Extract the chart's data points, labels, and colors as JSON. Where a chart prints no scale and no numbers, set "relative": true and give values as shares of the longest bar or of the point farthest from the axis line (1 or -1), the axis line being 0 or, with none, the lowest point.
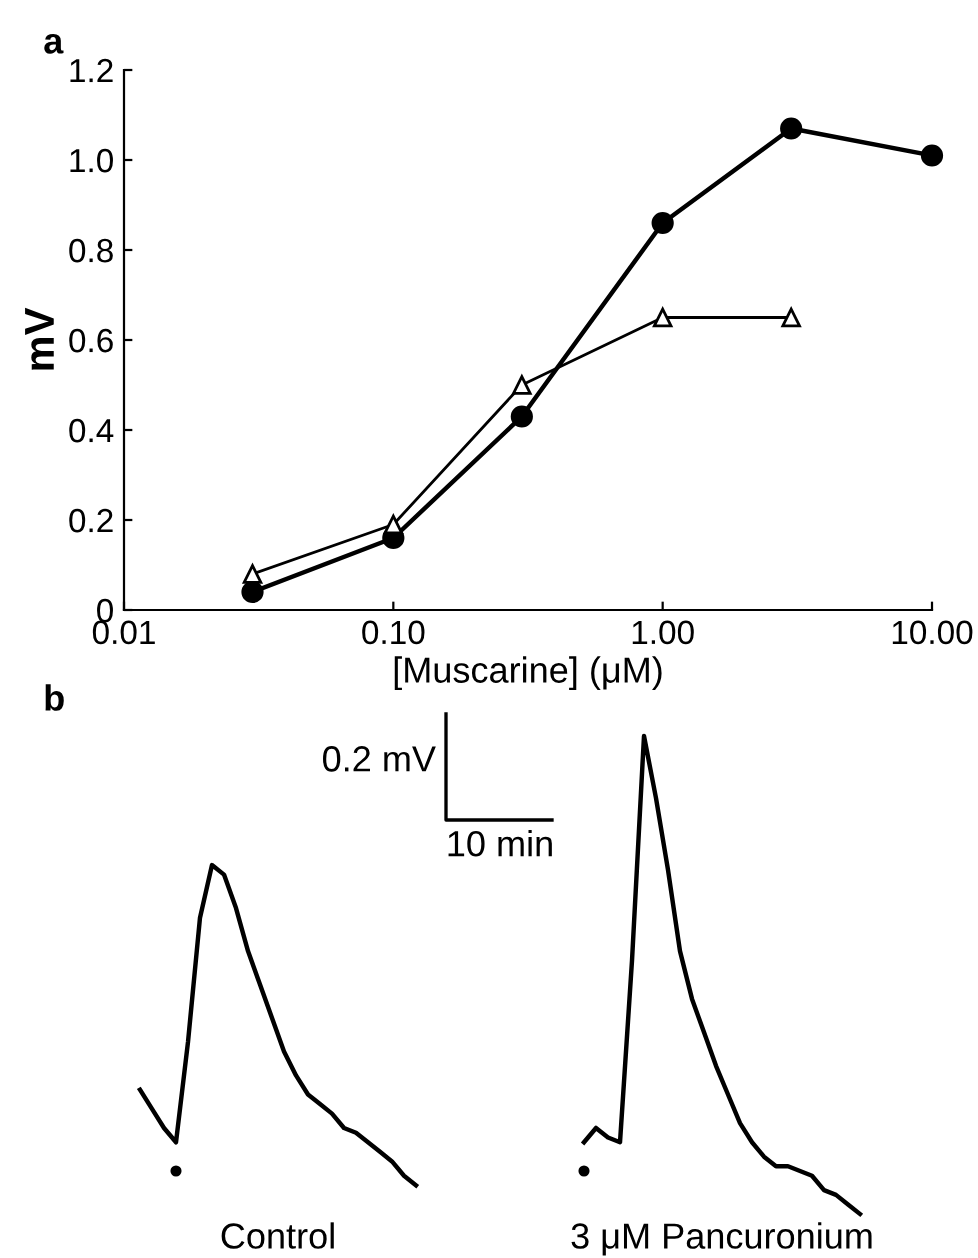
{
  "chart_data": [
    {
      "type": "line",
      "title": "a",
      "xlabel": "[Muscarine] (μM)",
      "ylabel": "mV",
      "log": "x",
      "x": [
        0.03,
        0.1,
        0.3,
        1,
        3,
        10
      ],
      "series": [
        {
          "color": "#000000",
          "marker": "circle",
          "values": [
            0.04,
            0.16,
            0.43,
            0.86,
            1.07,
            1.01
          ]
        },
        {
          "color": "#000000",
          "marker": "triangle",
          "x": [
            0.03,
            0.1,
            0.3,
            1,
            3
          ],
          "values": [
            0.08,
            0.19,
            0.5,
            0.65,
            0.65
          ]
        }
      ],
      "xlim": [
        0.01,
        10
      ],
      "xticks": [
        {
          "value": 0.01,
          "label": "0.01"
        },
        {
          "value": 0.1,
          "label": "0.10"
        },
        {
          "value": 1,
          "label": "1.00"
        },
        {
          "value": 10,
          "label": "10.00"
        }
      ],
      "ylim": [
        0,
        1.2
      ],
      "yticks": [
        0,
        {
          "value": 0.2,
          "label": "0.2"
        },
        {
          "value": 0.4,
          "label": "0.4"
        },
        {
          "value": 0.6,
          "label": "0.6"
        },
        {
          "value": 0.8,
          "label": "0.8"
        },
        {
          "value": 1.0,
          "label": "1.0"
        },
        {
          "value": 1.2,
          "label": "1.2"
        }
      ],
      "grid": false,
      "legend": false
    },
    {
      "type": "line",
      "title": "b",
      "relative": true,
      "legend": false,
      "grid": false,
      "annotations": [
        "0.2 mV",
        "10 min"
      ],
      "categories": [
        null,
        null,
        null,
        null,
        null,
        null,
        null,
        null,
        null,
        null,
        null,
        null,
        null,
        null,
        null,
        null,
        null,
        null,
        null,
        null,
        null,
        null,
        null,
        null,
        null,
        null,
        null,
        null,
        null,
        null,
        null,
        null,
        null,
        null,
        null,
        null,
        null,
        null,
        null,
        null,
        null,
        null,
        null,
        null,
        null,
        null,
        null,
        null,
        null,
        null,
        null,
        null,
        null,
        null,
        null,
        null,
        null,
        null,
        null,
        null,
        null
      ],
      "series": [
        {
          "name": "Control",
          "color": "#000000",
          "values": [
            0.26,
            0.22,
            0.18,
            0.15,
            0.36,
            0.62,
            0.73,
            0.71,
            0.64,
            0.55,
            0.48,
            0.41,
            0.34,
            0.29,
            0.25,
            0.23,
            0.21,
            0.18,
            0.17,
            0.15,
            0.13,
            0.11,
            0.08,
            0.06,
            null,
            null,
            null,
            null,
            null,
            null,
            null,
            null,
            null,
            null,
            null,
            null,
            null,
            null,
            null,
            null,
            null,
            null,
            null,
            null,
            null,
            null,
            null,
            null,
            null,
            null,
            null,
            null,
            null,
            null,
            null,
            null,
            null,
            null,
            null,
            null,
            null
          ]
        },
        {
          "name": "3 μM Pancuronium",
          "color": "#000000",
          "values": [
            null,
            null,
            null,
            null,
            null,
            null,
            null,
            null,
            null,
            null,
            null,
            null,
            null,
            null,
            null,
            null,
            null,
            null,
            null,
            null,
            null,
            null,
            null,
            null,
            null,
            null,
            null,
            null,
            null,
            null,
            null,
            null,
            null,
            null,
            null,
            null,
            null,
            0.15,
            0.18,
            0.16,
            0.15,
            0.53,
            1,
            0.87,
            0.72,
            0.55,
            0.45,
            0.38,
            0.31,
            0.25,
            0.19,
            0.15,
            0.12,
            0.1,
            0.1,
            0.09,
            0.08,
            0.05,
            0.04,
            0.02,
            0
          ]
        }
      ]
    }
  ]
}
